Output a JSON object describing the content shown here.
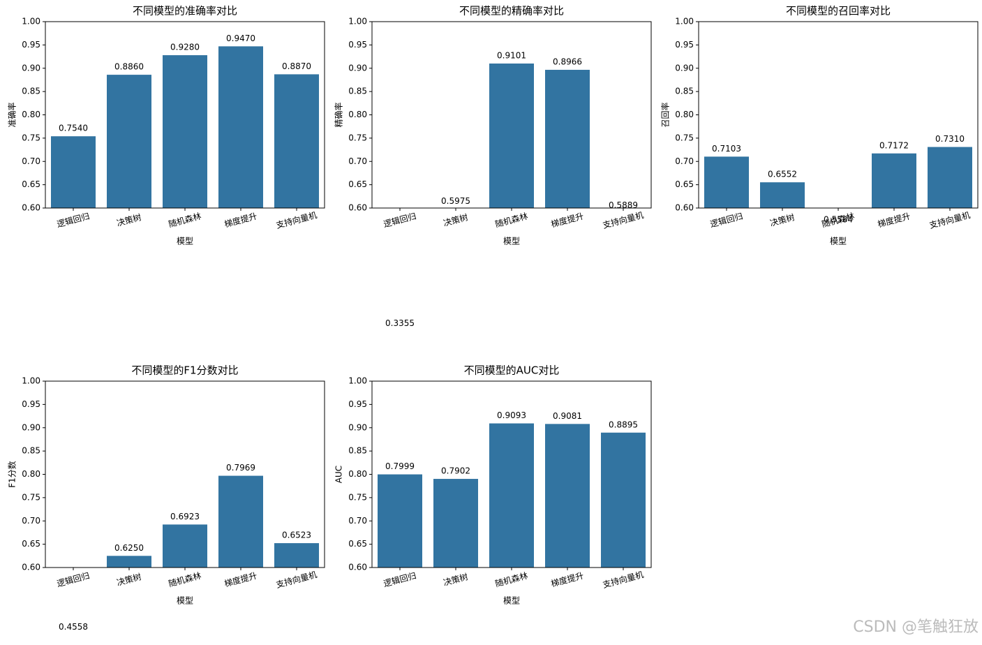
{
  "chart_data": [
    {
      "type": "bar",
      "title": "不同模型的准确率对比",
      "xlabel": "模型",
      "ylabel": "准确率",
      "categories": [
        "逻辑回归",
        "决策树",
        "随机森林",
        "梯度提升",
        "支持向量机"
      ],
      "values": [
        0.754,
        0.886,
        0.928,
        0.947,
        0.887
      ],
      "value_labels": [
        "0.7540",
        "0.8860",
        "0.9280",
        "0.9470",
        "0.8870"
      ],
      "color": "#3274a1",
      "ylim": [
        0.6,
        1.0
      ],
      "yticks": [
        {
          "value": 0.6,
          "label": "0.60"
        },
        {
          "value": 0.65,
          "label": "0.65"
        },
        {
          "value": 0.7,
          "label": "0.70"
        },
        {
          "value": 0.75,
          "label": "0.75"
        },
        {
          "value": 0.8,
          "label": "0.80"
        },
        {
          "value": 0.85,
          "label": "0.85"
        },
        {
          "value": 0.9,
          "label": "0.90"
        },
        {
          "value": 0.95,
          "label": "0.95"
        },
        {
          "value": 1.0,
          "label": "1.00"
        }
      ]
    },
    {
      "type": "bar",
      "title": "不同模型的精确率对比",
      "xlabel": "模型",
      "ylabel": "精确率",
      "categories": [
        "逻辑回归",
        "决策树",
        "随机森林",
        "梯度提升",
        "支持向量机"
      ],
      "values": [
        0.3355,
        0.5975,
        0.9101,
        0.8966,
        0.5889
      ],
      "value_labels": [
        "0.3355",
        "0.5975",
        "0.9101",
        "0.8966",
        "0.5889"
      ],
      "color": "#3274a1",
      "ylim": [
        0.6,
        1.0
      ],
      "yticks": [
        {
          "value": 0.6,
          "label": "0.60"
        },
        {
          "value": 0.65,
          "label": "0.65"
        },
        {
          "value": 0.7,
          "label": "0.70"
        },
        {
          "value": 0.75,
          "label": "0.75"
        },
        {
          "value": 0.8,
          "label": "0.80"
        },
        {
          "value": 0.85,
          "label": "0.85"
        },
        {
          "value": 0.9,
          "label": "0.90"
        },
        {
          "value": 0.95,
          "label": "0.95"
        },
        {
          "value": 1.0,
          "label": "1.00"
        }
      ]
    },
    {
      "type": "bar",
      "title": "不同模型的召回率对比",
      "xlabel": "模型",
      "ylabel": "召回率",
      "categories": [
        "逻辑回归",
        "决策树",
        "随机森林",
        "梯度提升",
        "支持向量机"
      ],
      "values": [
        0.7103,
        0.6552,
        0.5584,
        0.7172,
        0.731
      ],
      "value_labels": [
        "0.7103",
        "0.6552",
        "0.5584",
        "0.7172",
        "0.7310"
      ],
      "color": "#3274a1",
      "ylim": [
        0.6,
        1.0
      ],
      "yticks": [
        {
          "value": 0.6,
          "label": "0.60"
        },
        {
          "value": 0.65,
          "label": "0.65"
        },
        {
          "value": 0.7,
          "label": "0.70"
        },
        {
          "value": 0.75,
          "label": "0.75"
        },
        {
          "value": 0.8,
          "label": "0.80"
        },
        {
          "value": 0.85,
          "label": "0.85"
        },
        {
          "value": 0.9,
          "label": "0.90"
        },
        {
          "value": 0.95,
          "label": "0.95"
        },
        {
          "value": 1.0,
          "label": "1.00"
        }
      ]
    },
    {
      "type": "bar",
      "title": "不同模型的F1分数对比",
      "xlabel": "模型",
      "ylabel": "F1分数",
      "categories": [
        "逻辑回归",
        "决策树",
        "随机森林",
        "梯度提升",
        "支持向量机"
      ],
      "values": [
        0.4558,
        0.625,
        0.6923,
        0.7969,
        0.6523
      ],
      "value_labels": [
        "0.4558",
        "0.6250",
        "0.6923",
        "0.7969",
        "0.6523"
      ],
      "color": "#3274a1",
      "ylim": [
        0.6,
        1.0
      ],
      "yticks": [
        {
          "value": 0.6,
          "label": "0.60"
        },
        {
          "value": 0.65,
          "label": "0.65"
        },
        {
          "value": 0.7,
          "label": "0.70"
        },
        {
          "value": 0.75,
          "label": "0.75"
        },
        {
          "value": 0.8,
          "label": "0.80"
        },
        {
          "value": 0.85,
          "label": "0.85"
        },
        {
          "value": 0.9,
          "label": "0.90"
        },
        {
          "value": 0.95,
          "label": "0.95"
        },
        {
          "value": 1.0,
          "label": "1.00"
        }
      ]
    },
    {
      "type": "bar",
      "title": "不同模型的AUC对比",
      "xlabel": "模型",
      "ylabel": "AUC",
      "categories": [
        "逻辑回归",
        "决策树",
        "随机森林",
        "梯度提升",
        "支持向量机"
      ],
      "values": [
        0.7999,
        0.7902,
        0.9093,
        0.9081,
        0.8895
      ],
      "value_labels": [
        "0.7999",
        "0.7902",
        "0.9093",
        "0.9081",
        "0.8895"
      ],
      "color": "#3274a1",
      "ylim": [
        0.6,
        1.0
      ],
      "yticks": [
        {
          "value": 0.6,
          "label": "0.60"
        },
        {
          "value": 0.65,
          "label": "0.65"
        },
        {
          "value": 0.7,
          "label": "0.70"
        },
        {
          "value": 0.75,
          "label": "0.75"
        },
        {
          "value": 0.8,
          "label": "0.80"
        },
        {
          "value": 0.85,
          "label": "0.85"
        },
        {
          "value": 0.9,
          "label": "0.90"
        },
        {
          "value": 0.95,
          "label": "0.95"
        },
        {
          "value": 1.0,
          "label": "1.00"
        }
      ]
    }
  ],
  "watermark": "CSDN @笔触狂放"
}
